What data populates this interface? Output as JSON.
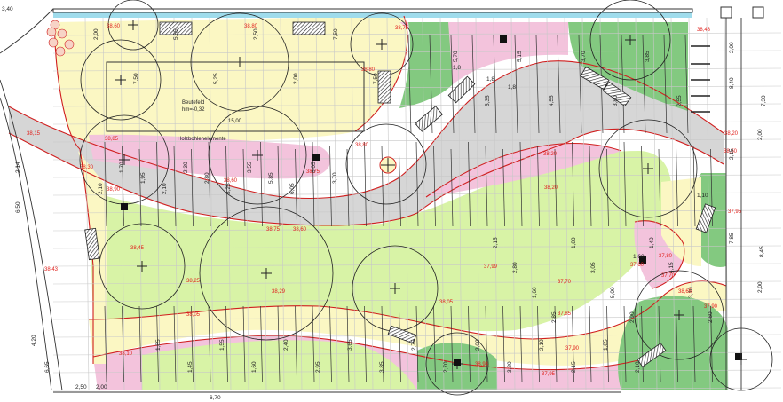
{
  "colors": {
    "yellow": "#fbf7c3",
    "green": "#d8f3a6",
    "pink": "#f3c3dc",
    "dark_green": "#83c980",
    "grey": "#d6d6d6",
    "red_line": "#d01f1f",
    "grid": "#c8c8c8",
    "text": "#222222",
    "elevation": "#e0201c",
    "water": "#9fdcec"
  },
  "icons": {
    "tree": "circle-with-cross",
    "bench": "hatched-rectangle",
    "lamp": "filled-square"
  },
  "labels": {
    "field_name": "Beutefeld",
    "field_elev": "hm=-0,32",
    "field_width": "15,00",
    "wood_elements": "Holzbohlenelemente"
  },
  "edge_dims": [
    "3,40",
    "6,50",
    "2,14",
    "6,65",
    "4,20",
    "2,00",
    "2,50",
    "6,70",
    "8,40",
    "7,30",
    "2,00",
    "2,00",
    "2,15",
    "8,45",
    "7,85",
    "2,00"
  ],
  "dims": [
    "2,00",
    "7,50",
    "5,85",
    "5,25",
    "2,50",
    "2,00",
    "7,50",
    "7,50",
    "2,10",
    "1,70",
    "1,95",
    "2,10",
    "2,30",
    "2,80",
    "3,25",
    "3,55",
    "5,85",
    "6,05",
    "6,05",
    "3,70",
    "5,70",
    "5,35",
    "5,15",
    "4,55",
    "3,70",
    "3,80",
    "3,85",
    "2,55",
    "1,85",
    "1,45",
    "1,55",
    "1,60",
    "2,40",
    "2,95",
    "3,65",
    "3,85",
    "2,75",
    "2,70",
    "2,00",
    "3,20",
    "2,10",
    "2,15",
    "1,85",
    "2,10",
    "2,15",
    "2,80",
    "1,60",
    "2,85",
    "1,80",
    "3,05",
    "5,00",
    "2,90",
    "1,40",
    "4,15",
    "3,10",
    "2,60"
  ],
  "elevations": [
    "38,60",
    "38,80",
    "38,80",
    "38,75",
    "38,43",
    "38,15",
    "38,30",
    "38,60",
    "38,80",
    "38,85",
    "38,90",
    "38,75",
    "38,20",
    "38,20",
    "38,75",
    "38,60",
    "38,45",
    "38,25",
    "38,29",
    "37,99",
    "37,70",
    "37,85",
    "37,80",
    "37,60",
    "38,05",
    "38,94",
    "38,05",
    "38,10",
    "37,90",
    "37,70",
    "37,95",
    "37,95",
    "37,90",
    "38,20",
    "38,50",
    "38,65",
    "38,43"
  ],
  "tags": [
    "1,8",
    "1,8",
    "1,8",
    "1,60",
    "1,10"
  ]
}
